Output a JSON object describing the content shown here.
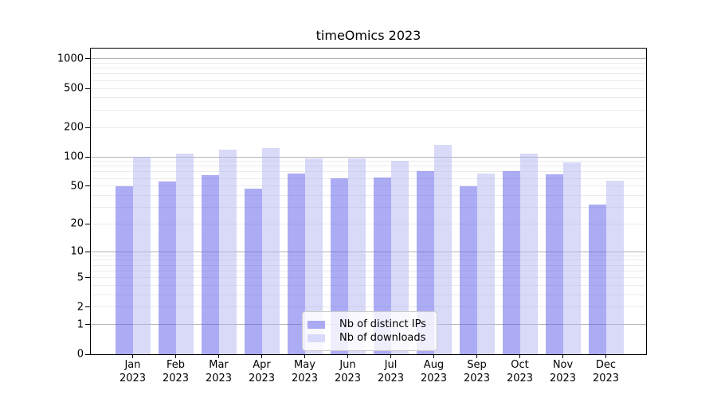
{
  "chart_data": {
    "type": "bar",
    "title": "timeOmics 2023",
    "categories": [
      "Jan 2023",
      "Feb 2023",
      "Mar 2023",
      "Apr 2023",
      "May 2023",
      "Jun 2023",
      "Jul 2023",
      "Aug 2023",
      "Sep 2023",
      "Oct 2023",
      "Nov 2023",
      "Dec 2023"
    ],
    "series": [
      {
        "name": "Nb of distinct IPs",
        "color": "rgba(90,90,235,0.5)",
        "solid_color": "#aaaaf4",
        "values": [
          50,
          56,
          65,
          47,
          68,
          60,
          61,
          71,
          50,
          71,
          66,
          32
        ]
      },
      {
        "name": "Nb of downloads",
        "color": "rgba(180,180,242,0.5)",
        "solid_color": "#d9d9f9",
        "values": [
          100,
          107,
          119,
          122,
          96,
          97,
          92,
          133,
          67,
          107,
          87,
          57
        ]
      }
    ],
    "y_ticks": [
      1000,
      500,
      200,
      100,
      50,
      20,
      10,
      5,
      2,
      1,
      0
    ],
    "y_major_gridlines": [
      1,
      10,
      100,
      1000
    ],
    "y_scale": "log10(value+1)",
    "ylim": [
      0,
      1270
    ],
    "grid": true,
    "legend_position": "lower center",
    "colors": {
      "bar_ips": "#aaaaf4",
      "bar_downloads": "#d9d9f9",
      "major_grid": "#b3b3b3",
      "minor_grid": "#ebebeb",
      "axis": "#000000",
      "text": "#000000",
      "legend_border": "#cccccc"
    }
  }
}
